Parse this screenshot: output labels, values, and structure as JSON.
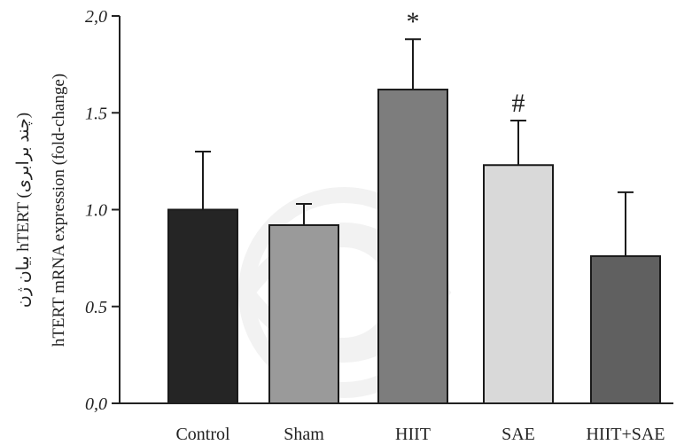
{
  "chart_data": {
    "type": "bar",
    "ylabel_line1": "بیان ژن hTERT (چند برابری)",
    "ylabel_line2": "hTERT mRNA expression (fold-change)",
    "ylim": [
      0,
      2.0
    ],
    "yticks": [
      "0,0",
      "0.5",
      "1.0",
      "1.5",
      "2,0"
    ],
    "ytick_values": [
      0,
      0.5,
      1.0,
      1.5,
      2.0
    ],
    "grid": false,
    "categories": [
      "Control",
      "Sham",
      "HIIT",
      "SAE",
      "HIIT+SAE"
    ],
    "values": [
      1.0,
      0.92,
      1.62,
      1.23,
      0.76
    ],
    "errors": [
      0.3,
      0.11,
      0.26,
      0.23,
      0.33
    ],
    "colors": [
      "#252525",
      "#9a9a9a",
      "#7d7d7d",
      "#d9d9d9",
      "#606060"
    ],
    "annotations": [
      "",
      "",
      "*",
      "#",
      ""
    ]
  }
}
